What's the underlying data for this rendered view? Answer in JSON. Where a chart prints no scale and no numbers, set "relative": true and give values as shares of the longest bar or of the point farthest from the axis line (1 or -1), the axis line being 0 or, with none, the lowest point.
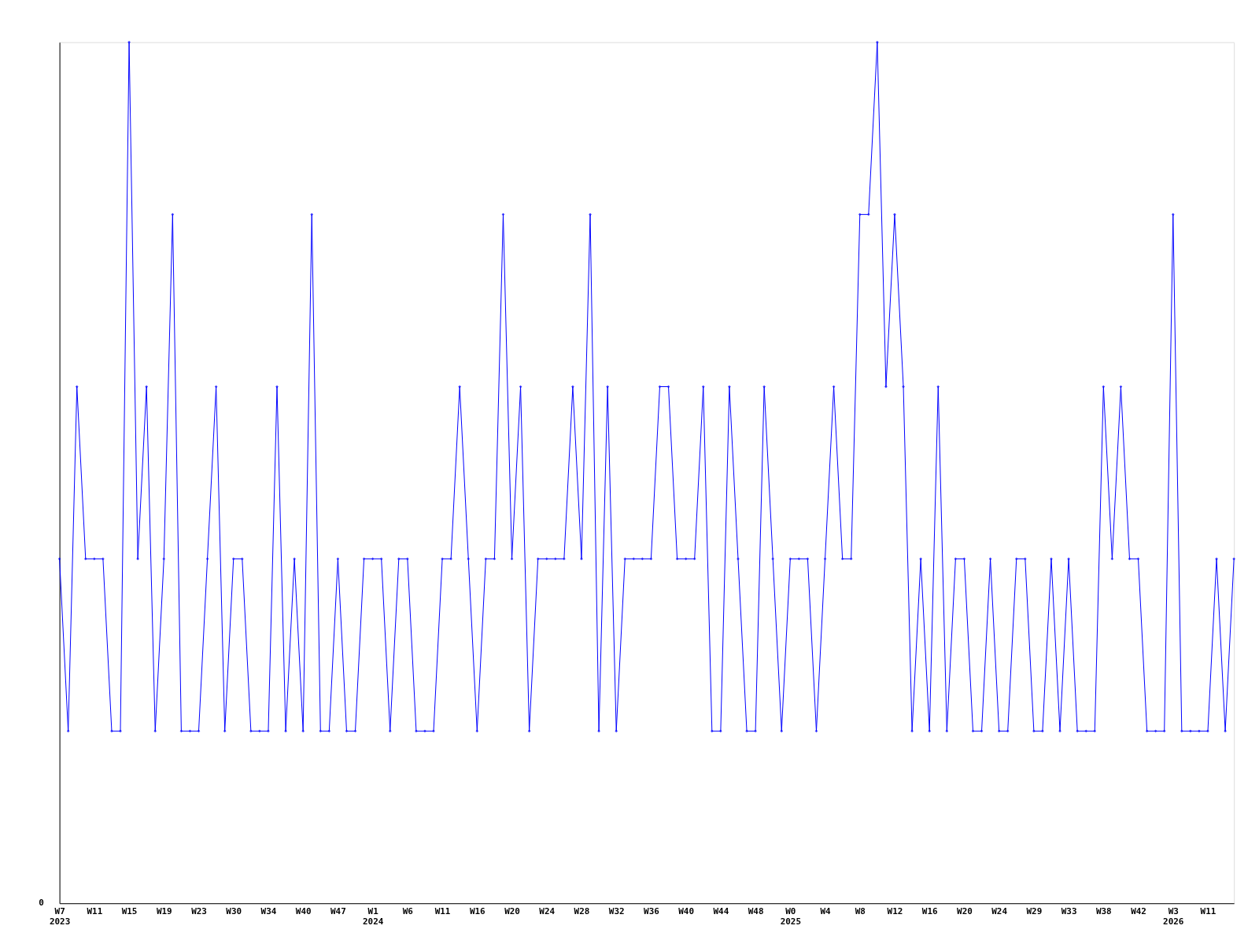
{
  "chart_data": {
    "type": "line",
    "relative": true,
    "color": "#0000ff",
    "marker": "diamond",
    "grid": false,
    "line_style": "solid",
    "categories": [
      "W7\n2023",
      null,
      null,
      null,
      "W11",
      null,
      null,
      null,
      "W15",
      null,
      null,
      null,
      "W19",
      null,
      null,
      null,
      "W23",
      null,
      null,
      null,
      "W30",
      null,
      null,
      null,
      "W34",
      null,
      null,
      null,
      "W40",
      null,
      null,
      null,
      "W47",
      null,
      null,
      null,
      "W1\n2024",
      null,
      null,
      null,
      "W6",
      null,
      null,
      null,
      "W11",
      null,
      null,
      null,
      "W16",
      null,
      null,
      null,
      "W20",
      null,
      null,
      null,
      "W24",
      null,
      null,
      null,
      "W28",
      null,
      null,
      null,
      "W32",
      null,
      null,
      null,
      "W36",
      null,
      null,
      null,
      "W40",
      null,
      null,
      null,
      "W44",
      null,
      null,
      null,
      "W48",
      null,
      null,
      null,
      "W0\n2025",
      null,
      null,
      null,
      "W4",
      null,
      null,
      null,
      "W8",
      null,
      null,
      null,
      "W12",
      null,
      null,
      null,
      "W16",
      null,
      null,
      null,
      "W20",
      null,
      null,
      null,
      "W24",
      null,
      null,
      null,
      "W29",
      null,
      null,
      null,
      "W33",
      null,
      null,
      null,
      "W38",
      null,
      null,
      null,
      "W42",
      null,
      null,
      null,
      "W3\n2026",
      null,
      null,
      null,
      "W11",
      null,
      null,
      null
    ],
    "values": [
      0.4,
      0.2,
      0.6,
      0.4,
      0.4,
      0.4,
      0.2,
      0.2,
      1.0,
      0.4,
      0.6,
      0.2,
      0.4,
      0.8,
      0.2,
      0.2,
      0.2,
      0.4,
      0.6,
      0.2,
      0.4,
      0.4,
      0.2,
      0.2,
      0.2,
      0.6,
      0.2,
      0.4,
      0.2,
      0.8,
      0.2,
      0.2,
      0.4,
      0.2,
      0.2,
      0.4,
      0.4,
      0.4,
      0.2,
      0.4,
      0.4,
      0.2,
      0.2,
      0.2,
      0.4,
      0.4,
      0.6,
      0.4,
      0.2,
      0.4,
      0.4,
      0.8,
      0.4,
      0.6,
      0.2,
      0.4,
      0.4,
      0.4,
      0.4,
      0.6,
      0.4,
      0.8,
      0.2,
      0.6,
      0.2,
      0.4,
      0.4,
      0.4,
      0.4,
      0.6,
      0.6,
      0.4,
      0.4,
      0.4,
      0.6,
      0.2,
      0.2,
      0.6,
      0.4,
      0.2,
      0.2,
      0.6,
      0.4,
      0.2,
      0.4,
      0.4,
      0.4,
      0.2,
      0.4,
      0.6,
      0.4,
      0.4,
      0.8,
      0.8,
      1.0,
      0.6,
      0.8,
      0.6,
      0.2,
      0.4,
      0.2,
      0.6,
      0.2,
      0.4,
      0.4,
      0.2,
      0.2,
      0.4,
      0.2,
      0.2,
      0.4,
      0.4,
      0.2,
      0.2,
      0.4,
      0.2,
      0.4,
      0.2,
      0.2,
      0.2,
      0.6,
      0.4,
      0.6,
      0.4,
      0.4,
      0.2,
      0.2,
      0.2,
      0.8,
      0.2,
      0.2,
      0.2,
      0.2,
      0.4,
      0.2,
      0.4
    ],
    "annotations": [
      "0"
    ]
  }
}
